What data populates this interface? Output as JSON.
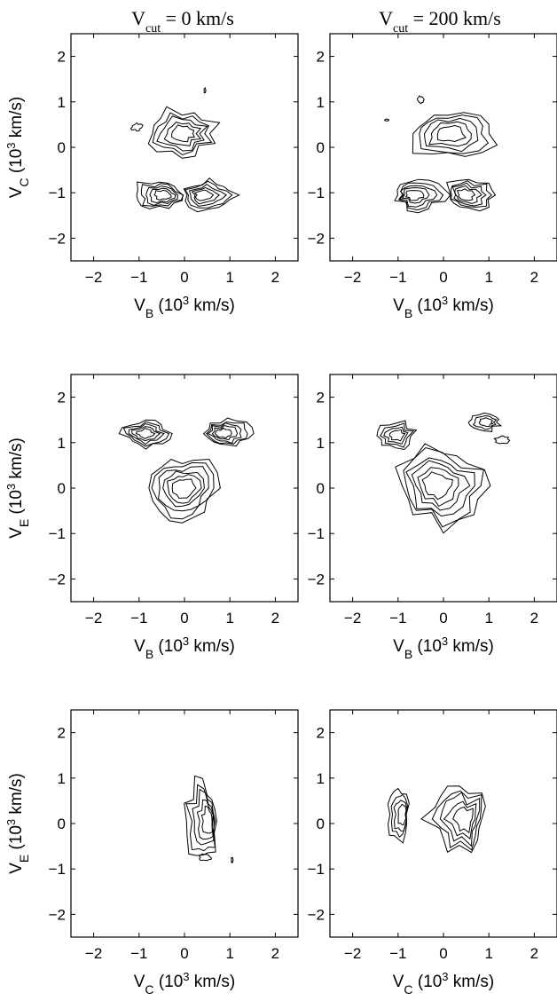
{
  "titles": {
    "left": {
      "pre": "V",
      "sub": "cut",
      "post": " = 0 km/s"
    },
    "right": {
      "pre": "V",
      "sub": "cut",
      "post": " = 200 km/s"
    }
  },
  "chart_data": [
    {
      "type": "contour",
      "id": "row1-left",
      "xlabel": {
        "sym": "V",
        "sub": "B",
        "pre": " (10",
        "sup": "3",
        "post": " km/s)"
      },
      "ylabel": {
        "sym": "V",
        "sub": "C",
        "pre": " (10",
        "sup": "3",
        "post": " km/s)"
      },
      "xlim": [
        -2.5,
        2.5
      ],
      "ylim": [
        -2.5,
        2.5
      ],
      "xticks": [
        -2,
        -1,
        0,
        1,
        2
      ],
      "yticks": [
        -2,
        -1,
        0,
        1,
        2
      ],
      "clusters": [
        {
          "cx": -0.05,
          "cy": 0.3,
          "rx": 0.7,
          "ry": 0.5,
          "levels": 5,
          "seed": 3
        },
        {
          "cx": -0.55,
          "cy": -1.05,
          "rx": 0.55,
          "ry": 0.32,
          "levels": 5,
          "seed": 7
        },
        {
          "cx": 0.55,
          "cy": -1.05,
          "rx": 0.55,
          "ry": 0.32,
          "levels": 5,
          "seed": 11
        },
        {
          "cx": -1.05,
          "cy": 0.45,
          "rx": 0.12,
          "ry": 0.08,
          "levels": 1,
          "seed": 13
        },
        {
          "cx": 0.45,
          "cy": 1.25,
          "rx": 0.02,
          "ry": 0.06,
          "levels": 1,
          "seed": 17
        }
      ]
    },
    {
      "type": "contour",
      "id": "row1-right",
      "xlabel": {
        "sym": "V",
        "sub": "B",
        "pre": " (10",
        "sup": "3",
        "post": " km/s)"
      },
      "ylabel": null,
      "xlim": [
        -2.5,
        2.5
      ],
      "ylim": [
        -2.5,
        2.5
      ],
      "xticks": [
        -2,
        -1,
        0,
        1,
        2
      ],
      "yticks": [
        -2,
        -1,
        0,
        1,
        2
      ],
      "clusters": [
        {
          "cx": 0.1,
          "cy": 0.3,
          "rx": 0.9,
          "ry": 0.5,
          "levels": 5,
          "seed": 19
        },
        {
          "cx": -0.55,
          "cy": -1.05,
          "rx": 0.55,
          "ry": 0.32,
          "levels": 5,
          "seed": 23
        },
        {
          "cx": 0.55,
          "cy": -1.05,
          "rx": 0.55,
          "ry": 0.32,
          "levels": 5,
          "seed": 29
        },
        {
          "cx": -0.5,
          "cy": 1.05,
          "rx": 0.07,
          "ry": 0.08,
          "levels": 1,
          "seed": 31
        },
        {
          "cx": -1.25,
          "cy": 0.6,
          "rx": 0.04,
          "ry": 0.02,
          "levels": 1,
          "seed": 37
        }
      ]
    },
    {
      "type": "contour",
      "id": "row2-left",
      "xlabel": {
        "sym": "V",
        "sub": "B",
        "pre": " (10",
        "sup": "3",
        "post": " km/s)"
      },
      "ylabel": {
        "sym": "V",
        "sub": "E",
        "pre": " (10",
        "sup": "3",
        "post": " km/s)"
      },
      "xlim": [
        -2.5,
        2.5
      ],
      "ylim": [
        -2.5,
        2.5
      ],
      "xticks": [
        -2,
        -1,
        0,
        1,
        2
      ],
      "yticks": [
        -2,
        -1,
        0,
        1,
        2
      ],
      "clusters": [
        {
          "cx": -0.85,
          "cy": 1.2,
          "rx": 0.5,
          "ry": 0.3,
          "levels": 5,
          "seed": 41
        },
        {
          "cx": 0.95,
          "cy": 1.2,
          "rx": 0.5,
          "ry": 0.3,
          "levels": 5,
          "seed": 43
        },
        {
          "cx": -0.05,
          "cy": 0.0,
          "rx": 0.7,
          "ry": 0.75,
          "levels": 6,
          "seed": 47
        }
      ]
    },
    {
      "type": "contour",
      "id": "row2-right",
      "xlabel": {
        "sym": "V",
        "sub": "B",
        "pre": " (10",
        "sup": "3",
        "post": " km/s)"
      },
      "ylabel": null,
      "xlim": [
        -2.5,
        2.5
      ],
      "ylim": [
        -2.5,
        2.5
      ],
      "xticks": [
        -2,
        -1,
        0,
        1,
        2
      ],
      "yticks": [
        -2,
        -1,
        0,
        1,
        2
      ],
      "clusters": [
        {
          "cx": -1.05,
          "cy": 1.15,
          "rx": 0.45,
          "ry": 0.3,
          "levels": 4,
          "seed": 53
        },
        {
          "cx": 0.9,
          "cy": 1.45,
          "rx": 0.35,
          "ry": 0.18,
          "levels": 3,
          "seed": 59
        },
        {
          "cx": 1.3,
          "cy": 1.05,
          "rx": 0.15,
          "ry": 0.08,
          "levels": 1,
          "seed": 61
        },
        {
          "cx": 0.0,
          "cy": 0.05,
          "rx": 0.95,
          "ry": 0.9,
          "levels": 6,
          "seed": 67
        }
      ]
    },
    {
      "type": "contour",
      "id": "row3-left",
      "xlabel": {
        "sym": "V",
        "sub": "C",
        "pre": " (10",
        "sup": "3",
        "post": " km/s)"
      },
      "ylabel": {
        "sym": "V",
        "sub": "E",
        "pre": " (10",
        "sup": "3",
        "post": " km/s)"
      },
      "xlim": [
        -2.5,
        2.5
      ],
      "ylim": [
        -2.5,
        2.5
      ],
      "xticks": [
        -2,
        -1,
        0,
        1,
        2
      ],
      "yticks": [
        -2,
        -1,
        0,
        1,
        2
      ],
      "clusters": [
        {
          "cx": 0.4,
          "cy": 0.05,
          "rx": 0.38,
          "ry": 0.9,
          "levels": 5,
          "seed": 71
        },
        {
          "cx": 0.45,
          "cy": -0.75,
          "rx": 0.12,
          "ry": 0.07,
          "levels": 1,
          "seed": 73
        },
        {
          "cx": 1.05,
          "cy": -0.8,
          "rx": 0.02,
          "ry": 0.06,
          "levels": 1,
          "seed": 79
        }
      ]
    },
    {
      "type": "contour",
      "id": "row3-right",
      "xlabel": {
        "sym": "V",
        "sub": "C",
        "pre": " (10",
        "sup": "3",
        "post": " km/s)"
      },
      "ylabel": null,
      "xlim": [
        -2.5,
        2.5
      ],
      "ylim": [
        -2.5,
        2.5
      ],
      "xticks": [
        -2,
        -1,
        0,
        1,
        2
      ],
      "yticks": [
        -2,
        -1,
        0,
        1,
        2
      ],
      "clusters": [
        {
          "cx": -1.0,
          "cy": 0.2,
          "rx": 0.25,
          "ry": 0.6,
          "levels": 4,
          "seed": 83
        },
        {
          "cx": 0.35,
          "cy": 0.1,
          "rx": 0.65,
          "ry": 0.75,
          "levels": 5,
          "seed": 89
        }
      ]
    }
  ]
}
